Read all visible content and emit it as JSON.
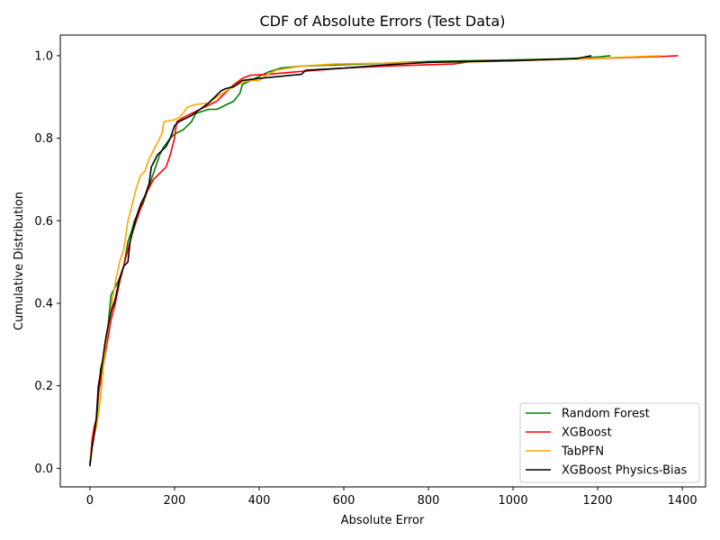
{
  "chart_data": {
    "type": "line",
    "title": "CDF of Absolute Errors (Test Data)",
    "xlabel": "Absolute Error",
    "ylabel": "Cumulative Distribution",
    "xlim": [
      -70,
      1455
    ],
    "ylim": [
      -0.045,
      1.05
    ],
    "xticks": [
      0,
      200,
      400,
      600,
      800,
      1000,
      1200,
      1400
    ],
    "yticks": [
      0.0,
      0.2,
      0.4,
      0.6,
      0.8,
      1.0
    ],
    "xtick_labels": [
      "0",
      "200",
      "400",
      "600",
      "800",
      "1000",
      "1200",
      "1400"
    ],
    "ytick_labels": [
      "0.0",
      "0.2",
      "0.4",
      "0.6",
      "0.8",
      "1.0"
    ],
    "grid": false,
    "legend_position": "bottom-right",
    "series": [
      {
        "name": "Random Forest",
        "color": "#008000",
        "points": [
          [
            0,
            0.01
          ],
          [
            5,
            0.06
          ],
          [
            10,
            0.09
          ],
          [
            15,
            0.11
          ],
          [
            20,
            0.17
          ],
          [
            25,
            0.24
          ],
          [
            30,
            0.26
          ],
          [
            35,
            0.28
          ],
          [
            40,
            0.31
          ],
          [
            45,
            0.37
          ],
          [
            50,
            0.42
          ],
          [
            55,
            0.43
          ],
          [
            60,
            0.44
          ],
          [
            70,
            0.46
          ],
          [
            80,
            0.49
          ],
          [
            90,
            0.55
          ],
          [
            100,
            0.58
          ],
          [
            105,
            0.6
          ],
          [
            115,
            0.62
          ],
          [
            125,
            0.64
          ],
          [
            135,
            0.67
          ],
          [
            145,
            0.7
          ],
          [
            155,
            0.73
          ],
          [
            165,
            0.76
          ],
          [
            175,
            0.78
          ],
          [
            190,
            0.8
          ],
          [
            200,
            0.81
          ],
          [
            220,
            0.82
          ],
          [
            240,
            0.84
          ],
          [
            250,
            0.86
          ],
          [
            280,
            0.87
          ],
          [
            300,
            0.87
          ],
          [
            320,
            0.88
          ],
          [
            340,
            0.89
          ],
          [
            355,
            0.91
          ],
          [
            360,
            0.93
          ],
          [
            380,
            0.94
          ],
          [
            400,
            0.95
          ],
          [
            420,
            0.96
          ],
          [
            450,
            0.97
          ],
          [
            500,
            0.975
          ],
          [
            600,
            0.978
          ],
          [
            700,
            0.982
          ],
          [
            800,
            0.986
          ],
          [
            900,
            0.988
          ],
          [
            1000,
            0.99
          ],
          [
            1100,
            0.992
          ],
          [
            1150,
            0.994
          ],
          [
            1200,
            0.997
          ],
          [
            1230,
            1.0
          ]
        ]
      },
      {
        "name": "XGBoost",
        "color": "#ff0000",
        "points": [
          [
            0,
            0.01
          ],
          [
            5,
            0.07
          ],
          [
            10,
            0.1
          ],
          [
            15,
            0.12
          ],
          [
            20,
            0.18
          ],
          [
            25,
            0.21
          ],
          [
            30,
            0.24
          ],
          [
            35,
            0.27
          ],
          [
            40,
            0.3
          ],
          [
            45,
            0.33
          ],
          [
            50,
            0.36
          ],
          [
            60,
            0.4
          ],
          [
            70,
            0.45
          ],
          [
            80,
            0.49
          ],
          [
            90,
            0.53
          ],
          [
            100,
            0.57
          ],
          [
            110,
            0.6
          ],
          [
            120,
            0.63
          ],
          [
            130,
            0.66
          ],
          [
            140,
            0.68
          ],
          [
            150,
            0.7
          ],
          [
            160,
            0.71
          ],
          [
            170,
            0.72
          ],
          [
            180,
            0.73
          ],
          [
            190,
            0.76
          ],
          [
            200,
            0.8
          ],
          [
            205,
            0.84
          ],
          [
            220,
            0.85
          ],
          [
            240,
            0.86
          ],
          [
            260,
            0.87
          ],
          [
            300,
            0.89
          ],
          [
            320,
            0.91
          ],
          [
            340,
            0.93
          ],
          [
            360,
            0.945
          ],
          [
            380,
            0.953
          ],
          [
            420,
            0.955
          ],
          [
            500,
            0.962
          ],
          [
            600,
            0.97
          ],
          [
            700,
            0.975
          ],
          [
            860,
            0.98
          ],
          [
            900,
            0.986
          ],
          [
            1000,
            0.988
          ],
          [
            1150,
            0.992
          ],
          [
            1350,
            0.998
          ],
          [
            1390,
            1.0
          ]
        ]
      },
      {
        "name": "TabPFN",
        "color": "#ffa500",
        "points": [
          [
            0,
            0.02
          ],
          [
            5,
            0.05
          ],
          [
            10,
            0.08
          ],
          [
            15,
            0.1
          ],
          [
            20,
            0.13
          ],
          [
            25,
            0.17
          ],
          [
            30,
            0.23
          ],
          [
            35,
            0.28
          ],
          [
            40,
            0.32
          ],
          [
            50,
            0.39
          ],
          [
            60,
            0.45
          ],
          [
            70,
            0.5
          ],
          [
            80,
            0.53
          ],
          [
            90,
            0.6
          ],
          [
            100,
            0.64
          ],
          [
            110,
            0.68
          ],
          [
            120,
            0.71
          ],
          [
            130,
            0.72
          ],
          [
            140,
            0.75
          ],
          [
            150,
            0.77
          ],
          [
            160,
            0.79
          ],
          [
            170,
            0.81
          ],
          [
            175,
            0.84
          ],
          [
            200,
            0.845
          ],
          [
            210,
            0.85
          ],
          [
            220,
            0.86
          ],
          [
            230,
            0.875
          ],
          [
            250,
            0.882
          ],
          [
            280,
            0.885
          ],
          [
            300,
            0.9
          ],
          [
            330,
            0.92
          ],
          [
            360,
            0.935
          ],
          [
            380,
            0.94
          ],
          [
            400,
            0.94
          ],
          [
            420,
            0.955
          ],
          [
            440,
            0.965
          ],
          [
            500,
            0.975
          ],
          [
            580,
            0.98
          ],
          [
            700,
            0.982
          ],
          [
            800,
            0.984
          ],
          [
            900,
            0.985
          ],
          [
            1000,
            0.988
          ],
          [
            1150,
            0.992
          ],
          [
            1350,
            1.0
          ]
        ]
      },
      {
        "name": "XGBoost Physics-Bias",
        "color": "#000000",
        "points": [
          [
            0,
            0.005
          ],
          [
            5,
            0.05
          ],
          [
            10,
            0.08
          ],
          [
            15,
            0.12
          ],
          [
            20,
            0.2
          ],
          [
            25,
            0.23
          ],
          [
            30,
            0.26
          ],
          [
            35,
            0.3
          ],
          [
            40,
            0.33
          ],
          [
            50,
            0.38
          ],
          [
            60,
            0.41
          ],
          [
            70,
            0.46
          ],
          [
            80,
            0.49
          ],
          [
            90,
            0.5
          ],
          [
            95,
            0.55
          ],
          [
            100,
            0.57
          ],
          [
            110,
            0.61
          ],
          [
            120,
            0.64
          ],
          [
            130,
            0.66
          ],
          [
            140,
            0.69
          ],
          [
            145,
            0.73
          ],
          [
            150,
            0.74
          ],
          [
            160,
            0.76
          ],
          [
            170,
            0.77
          ],
          [
            180,
            0.78
          ],
          [
            190,
            0.8
          ],
          [
            200,
            0.83
          ],
          [
            210,
            0.84
          ],
          [
            220,
            0.845
          ],
          [
            240,
            0.855
          ],
          [
            260,
            0.87
          ],
          [
            280,
            0.885
          ],
          [
            300,
            0.905
          ],
          [
            310,
            0.915
          ],
          [
            320,
            0.92
          ],
          [
            340,
            0.925
          ],
          [
            360,
            0.94
          ],
          [
            400,
            0.945
          ],
          [
            500,
            0.955
          ],
          [
            510,
            0.965
          ],
          [
            600,
            0.97
          ],
          [
            700,
            0.978
          ],
          [
            800,
            0.984
          ],
          [
            1000,
            0.988
          ],
          [
            1150,
            0.993
          ],
          [
            1185,
            1.0
          ]
        ]
      }
    ]
  }
}
